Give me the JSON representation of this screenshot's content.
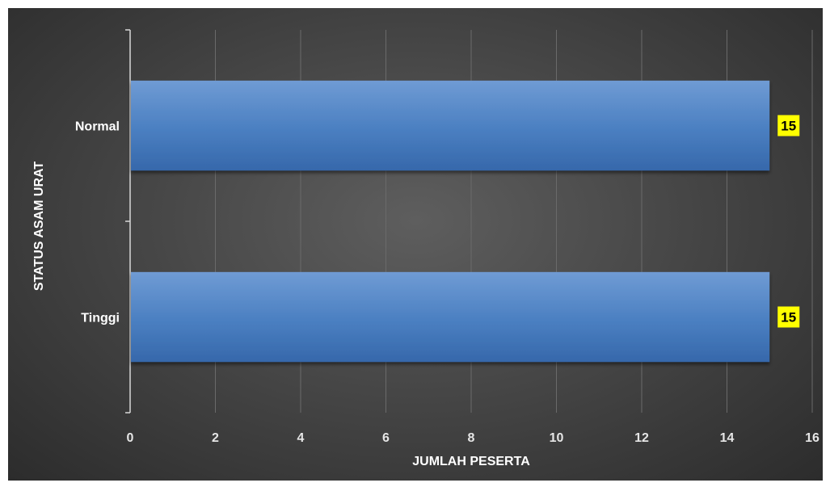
{
  "chart_data": {
    "type": "bar",
    "orientation": "horizontal",
    "categories": [
      "Normal",
      "Tinggi"
    ],
    "values": [
      15,
      15
    ],
    "data_labels": [
      "15",
      "15"
    ],
    "xlabel": "JUMLAH PESERTA",
    "ylabel": "STATUS ASAM URAT",
    "xlim": [
      0,
      16
    ],
    "x_ticks": [
      "0",
      "2",
      "4",
      "6",
      "8",
      "10",
      "12",
      "14",
      "16"
    ],
    "grid": "vertical",
    "legend": "none"
  },
  "colors": {
    "background": "#474747",
    "bar": "#4a7fc1",
    "data_label_bg": "#ffff00",
    "text": "#ffffff",
    "gridline": "#6a6a6a"
  }
}
